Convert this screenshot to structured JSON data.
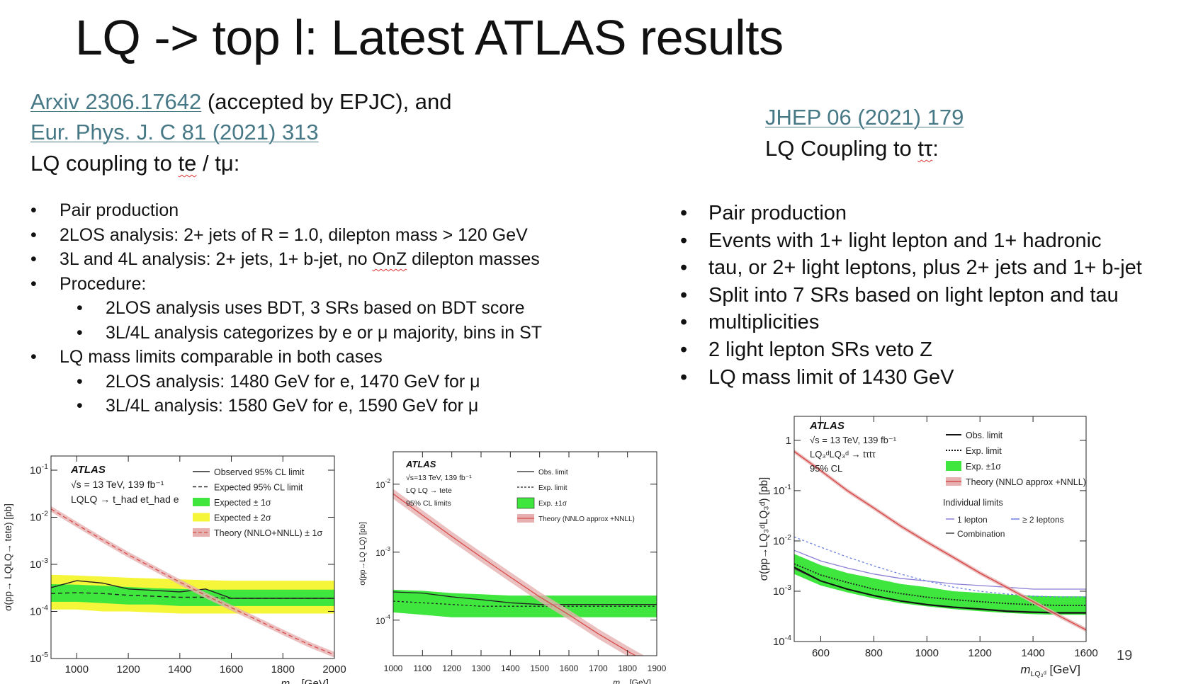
{
  "title": "LQ -> top l: Latest ATLAS results",
  "left_header": {
    "link1": "Arxiv 2306.17642",
    "link1_suffix": " (accepted by EPJC), and",
    "link2": "Eur. Phys. J. C 81 (2021) 313",
    "coupling_prefix": "LQ coupling to ",
    "coupling_te": "te",
    "coupling_suffix": " / tμ:"
  },
  "left_bullets": [
    "Pair production",
    "2LOS analysis: 2+ jets of R = 1.0, dilepton mass > 120 GeV",
    "3L and 4L analysis: 2+ jets, 1+ b-jet, no OnZ dilepton masses",
    "Procedure:",
    "2LOS analysis uses BDT, 3 SRs based on BDT score",
    "3L/4L analysis categorizes by e or μ majority, bins in ST",
    "LQ mass limits comparable in both cases",
    "2LOS analysis: 1480 GeV for e, 1470 GeV for μ",
    "3L/4L analysis: 1580 GeV for e, 1590 GeV for μ"
  ],
  "right_header": {
    "link": "JHEP 06 (2021) 179",
    "coupling_prefix": "LQ Coupling to ",
    "coupling_tt": "tτ",
    "coupling_suffix": ":"
  },
  "right_bullets": [
    "Pair production",
    "Events with 1+ light lepton and 1+ hadronic",
    "tau, or 2+ light leptons, plus 2+ jets and 1+ b-jet",
    "Split into 7 SRs based on light lepton and tau",
    "multiplicities",
    "2 light lepton SRs veto Z",
    "LQ mass limit of 1430 GeV"
  ],
  "page_number": "19",
  "colors": {
    "link": "#467886",
    "green_band": "#3ee63e",
    "yellow_band": "#f5f53a",
    "theory_band": "#e6b0b0",
    "theory_line": "#d94a4a"
  },
  "chart_data": [
    {
      "type": "line",
      "log_y": true,
      "xlim": [
        900,
        2000
      ],
      "ylim": [
        1e-05,
        0.2
      ],
      "x_ticks": [
        "1000",
        "1200",
        "1400",
        "1600",
        "1800",
        "2000"
      ],
      "y_ticks": [
        {
          "v": 0.1,
          "b": "10",
          "e": "-1"
        },
        {
          "v": 0.01,
          "b": "10",
          "e": "-2"
        },
        {
          "v": 0.001,
          "b": "10",
          "e": "-3"
        },
        {
          "v": 0.0001,
          "b": "10",
          "e": "-4"
        },
        {
          "v": 1e-05,
          "b": "10",
          "e": "-5"
        }
      ],
      "xlabel": {
        "base": "m",
        "sub": "LQ",
        "unit": " [GeV]"
      },
      "ylabel": "σ(pp→ LQLQ→ tete) [pb]",
      "atlas": "ATLAS",
      "info": [
        "√s = 13 TeV, 139 fb⁻¹",
        "LQLQ → t_had et_had e"
      ],
      "legend_position": "top-right",
      "legend": [
        "Observed 95% CL limit",
        "Expected 95% CL limit",
        "Expected ± 1σ",
        "Expected ± 2σ",
        "Theory (NNLO+NNLL) ± 1σ"
      ],
      "x": [
        900,
        1000,
        1100,
        1200,
        1300,
        1400,
        1500,
        1600,
        1700,
        1800,
        1900,
        2000
      ],
      "series": [
        {
          "name": "Observed 95% CL limit",
          "values": [
            0.00032,
            0.00045,
            0.0004,
            0.0003,
            0.00028,
            0.00026,
            0.0003,
            0.00019,
            0.00019,
            0.00019,
            0.00019,
            0.00019
          ]
        },
        {
          "name": "Expected 95% CL limit",
          "values": [
            0.00024,
            0.00025,
            0.00024,
            0.00022,
            0.00021,
            0.0002,
            0.0002,
            0.00019,
            0.00019,
            0.00019,
            0.00019,
            0.00019
          ]
        },
        {
          "name": "Expected ± 1σ",
          "lower": [
            0.00016,
            0.00016,
            0.00015,
            0.00014,
            0.00014,
            0.00013,
            0.00013,
            0.00013,
            0.00013,
            0.00013,
            0.00013,
            0.00013
          ],
          "upper": [
            0.00038,
            0.00037,
            0.00035,
            0.00033,
            0.00031,
            0.0003,
            0.00029,
            0.00029,
            0.00029,
            0.00029,
            0.00029,
            0.00029
          ]
        },
        {
          "name": "Expected ± 2σ",
          "lower": [
            0.00011,
            0.00011,
            0.0001,
            0.0001,
            9.5e-05,
            9e-05,
            9e-05,
            9e-05,
            9e-05,
            9e-05,
            9e-05,
            9e-05
          ],
          "upper": [
            0.0006,
            0.00058,
            0.00055,
            0.00052,
            0.0005,
            0.00048,
            0.00046,
            0.00045,
            0.00045,
            0.00045,
            0.00045,
            0.00045
          ]
        },
        {
          "name": "Theory (NNLO+NNLL) ± 1σ",
          "values": [
            0.015,
            0.007,
            0.0033,
            0.0016,
            0.00082,
            0.00042,
            0.00022,
            0.00012,
            6.6e-05,
            3.6e-05,
            2e-05,
            1.2e-05
          ]
        }
      ]
    },
    {
      "type": "line",
      "log_y": true,
      "xlim": [
        1000,
        1900
      ],
      "ylim": [
        3e-05,
        0.03
      ],
      "x_ticks": [
        "1000",
        "1100",
        "1200",
        "1300",
        "1400",
        "1500",
        "1600",
        "1700",
        "1800",
        "1900"
      ],
      "y_ticks": [
        {
          "v": 0.01,
          "b": "10",
          "e": "-2"
        },
        {
          "v": 0.001,
          "b": "10",
          "e": "-3"
        },
        {
          "v": 0.0001,
          "b": "10",
          "e": "-4"
        }
      ],
      "xlabel": {
        "base": "m",
        "sub": "LQ",
        "unit": " [GeV]"
      },
      "ylabel": "σ(pp→LQ LQ) [pb]",
      "atlas": "ATLAS",
      "info": [
        "√s=13 TeV, 139 fb⁻¹",
        "LQ LQ → tete",
        "95% CL limits"
      ],
      "legend_position": "top-right",
      "legend": [
        "Obs. limit",
        "Exp. limit",
        "Exp. ±1σ",
        "Theory (NNLO approx +NNLL)"
      ],
      "x": [
        1000,
        1100,
        1200,
        1300,
        1400,
        1500,
        1600,
        1700,
        1800,
        1900
      ],
      "series": [
        {
          "name": "Obs. limit",
          "values": [
            0.00026,
            0.00025,
            0.00022,
            0.0002,
            0.00018,
            0.00017,
            0.00017,
            0.00017,
            0.00017,
            0.00017
          ]
        },
        {
          "name": "Exp. limit",
          "values": [
            0.00019,
            0.00018,
            0.00017,
            0.00016,
            0.00016,
            0.00016,
            0.00016,
            0.00016,
            0.00016,
            0.00016
          ]
        },
        {
          "name": "Exp. ±1σ",
          "lower": [
            0.00013,
            0.00012,
            0.00011,
            0.00011,
            0.00011,
            0.00011,
            0.00011,
            0.00011,
            0.00011,
            0.00011
          ],
          "upper": [
            0.00028,
            0.00027,
            0.00025,
            0.00024,
            0.00023,
            0.00023,
            0.00023,
            0.00023,
            0.00023,
            0.00023
          ]
        },
        {
          "name": "Theory (NNLO approx +NNLL)",
          "values": [
            0.0072,
            0.0035,
            0.0017,
            0.00085,
            0.00043,
            0.00022,
            0.00012,
            6.3e-05,
            3.5e-05,
            2e-05
          ]
        }
      ]
    },
    {
      "type": "line",
      "log_y": true,
      "xlim": [
        500,
        1600
      ],
      "ylim": [
        0.0001,
        3
      ],
      "x_ticks": [
        "600",
        "800",
        "1000",
        "1200",
        "1400",
        "1600"
      ],
      "y_ticks": [
        {
          "v": 1,
          "b": "1",
          "e": ""
        },
        {
          "v": 0.1,
          "b": "10",
          "e": "-1"
        },
        {
          "v": 0.01,
          "b": "10",
          "e": "-2"
        },
        {
          "v": 0.001,
          "b": "10",
          "e": "-3"
        },
        {
          "v": 0.0001,
          "b": "10",
          "e": "-4"
        }
      ],
      "xlabel": {
        "base": "m",
        "sub": "LQ₃ᵈ",
        "unit": " [GeV]"
      },
      "ylabel": "σ(pp→LQ₃ᵈLQ₃ᵈ) [pb]",
      "atlas": "ATLAS",
      "info": [
        "√s = 13 TeV, 139 fb⁻¹",
        "LQ₃ᵈLQ₃ᵈ → tτtτ",
        "95% CL"
      ],
      "legend_position": "top-right",
      "legend": [
        "Obs. limit",
        "Exp. limit",
        "Exp. ±1σ",
        "Theory (NNLO approx +NNLL)",
        "Individual limits",
        "1 lepton",
        "≥ 2 leptons",
        "Combination"
      ],
      "x": [
        500,
        600,
        700,
        800,
        900,
        1000,
        1100,
        1200,
        1300,
        1400,
        1500,
        1600
      ],
      "series": [
        {
          "name": "Obs. limit",
          "values": [
            0.003,
            0.0016,
            0.0011,
            0.00082,
            0.00064,
            0.00054,
            0.00048,
            0.00044,
            0.0004,
            0.00038,
            0.00037,
            0.00037
          ]
        },
        {
          "name": "Exp. limit",
          "values": [
            0.0035,
            0.0021,
            0.0015,
            0.0011,
            0.0009,
            0.00076,
            0.00068,
            0.00062,
            0.00057,
            0.00054,
            0.00052,
            0.00052
          ]
        },
        {
          "name": "Exp. ±1σ",
          "lower": [
            0.0022,
            0.0013,
            0.00095,
            0.00072,
            0.00058,
            0.0005,
            0.00044,
            0.0004,
            0.00037,
            0.00035,
            0.00034,
            0.00034
          ],
          "upper": [
            0.0055,
            0.0033,
            0.0023,
            0.0018,
            0.0014,
            0.0012,
            0.001,
            0.00093,
            0.00086,
            0.00081,
            0.00079,
            0.00079
          ]
        },
        {
          "name": "Theory (NNLO approx +NNLL)",
          "values": [
            0.6,
            0.25,
            0.1,
            0.045,
            0.02,
            0.0095,
            0.0047,
            0.0023,
            0.0012,
            0.00062,
            0.00032,
            0.00017
          ]
        },
        {
          "name": "1 lepton",
          "values": [
            0.0065,
            0.004,
            0.0029,
            0.0022,
            0.0018,
            0.0016,
            0.0014,
            0.0013,
            0.0012,
            0.0011,
            0.0011,
            0.0011
          ]
        },
        {
          "name": "≥ 2 leptons",
          "values": [
            0.012,
            0.0075,
            0.0048,
            0.0032,
            0.0022,
            0.0016,
            0.0012,
            0.001,
            0.00088,
            0.0008,
            0.00077,
            0.00077
          ]
        },
        {
          "name": "Combination",
          "values": [
            0.0028,
            0.0016,
            0.0011,
            0.00082,
            0.00065,
            0.00055,
            0.00049,
            0.00045,
            0.00041,
            0.00039,
            0.00038,
            0.00038
          ]
        }
      ]
    }
  ]
}
